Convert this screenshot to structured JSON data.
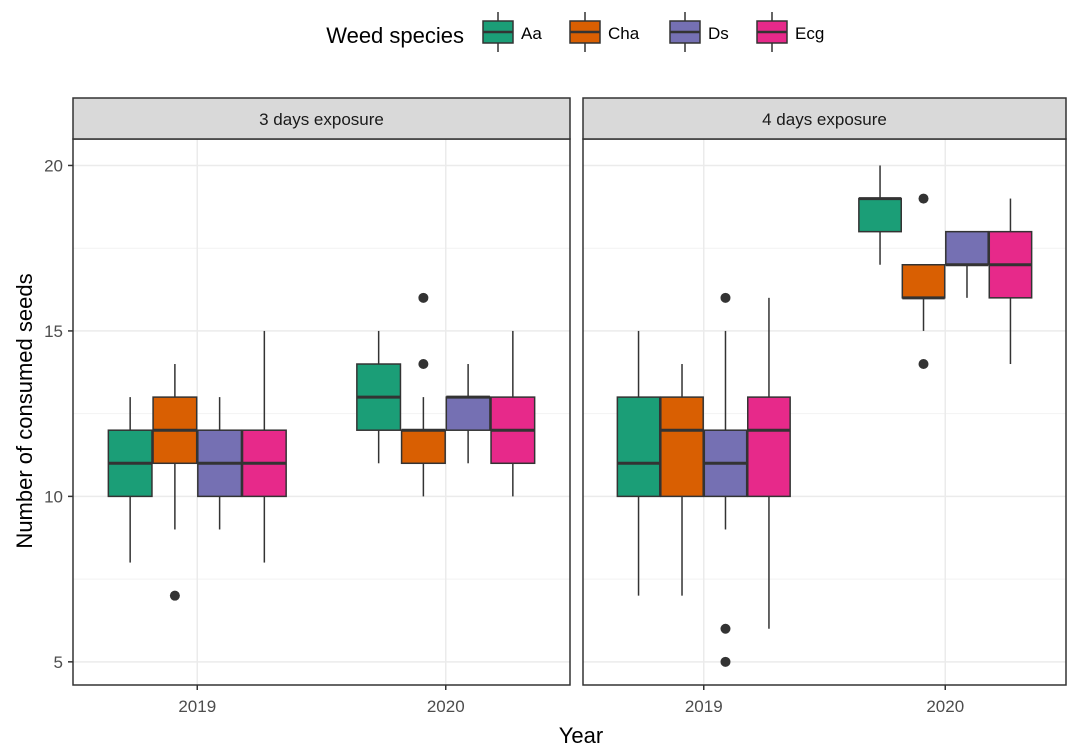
{
  "chart_data": {
    "type": "box",
    "xlabel": "Year",
    "ylabel": "Number of consumed seeds",
    "ylim": [
      4.3,
      20.8
    ],
    "yticks": [
      5,
      10,
      15,
      20
    ],
    "grid": true,
    "legend": {
      "title": "Weed species",
      "position": "top",
      "entries": [
        {
          "key": "Aa",
          "label": "Aa",
          "color": "#1b9e77"
        },
        {
          "key": "Cha",
          "label": "Cha",
          "color": "#d95f02"
        },
        {
          "key": "Ds",
          "label": "Ds",
          "color": "#7570b3"
        },
        {
          "key": "Ecg",
          "label": "Ecg",
          "color": "#e7298a"
        }
      ]
    },
    "categories": [
      "2019",
      "2020"
    ],
    "panels": [
      {
        "title": "3 days exposure",
        "boxes": [
          {
            "year": "2019",
            "species": "Aa",
            "min": 8,
            "q1": 10,
            "median": 11,
            "q3": 12,
            "max": 13,
            "outliers": []
          },
          {
            "year": "2019",
            "species": "Cha",
            "min": 9,
            "q1": 11,
            "median": 12,
            "q3": 13,
            "max": 14,
            "outliers": [
              7
            ]
          },
          {
            "year": "2019",
            "species": "Ds",
            "min": 9,
            "q1": 10,
            "median": 11,
            "q3": 12,
            "max": 13,
            "outliers": []
          },
          {
            "year": "2019",
            "species": "Ecg",
            "min": 8,
            "q1": 10,
            "median": 11,
            "q3": 12,
            "max": 15,
            "outliers": []
          },
          {
            "year": "2020",
            "species": "Aa",
            "min": 11,
            "q1": 12,
            "median": 13,
            "q3": 14,
            "max": 15,
            "outliers": []
          },
          {
            "year": "2020",
            "species": "Cha",
            "min": 10,
            "q1": 11,
            "median": 12,
            "q3": 12,
            "max": 13,
            "outliers": [
              14,
              16
            ]
          },
          {
            "year": "2020",
            "species": "Ds",
            "min": 11,
            "q1": 12,
            "median": 13,
            "q3": 13,
            "max": 14,
            "outliers": []
          },
          {
            "year": "2020",
            "species": "Ecg",
            "min": 10,
            "q1": 11,
            "median": 12,
            "q3": 13,
            "max": 15,
            "outliers": []
          }
        ]
      },
      {
        "title": "4 days exposure",
        "boxes": [
          {
            "year": "2019",
            "species": "Aa",
            "min": 7,
            "q1": 10,
            "median": 11,
            "q3": 13,
            "max": 15,
            "outliers": []
          },
          {
            "year": "2019",
            "species": "Cha",
            "min": 7,
            "q1": 10,
            "median": 12,
            "q3": 13,
            "max": 14,
            "outliers": []
          },
          {
            "year": "2019",
            "species": "Ds",
            "min": 9,
            "q1": 10,
            "median": 11,
            "q3": 12,
            "max": 15,
            "outliers": [
              5,
              6,
              16
            ]
          },
          {
            "year": "2019",
            "species": "Ecg",
            "min": 6,
            "q1": 10,
            "median": 12,
            "q3": 13,
            "max": 16,
            "outliers": []
          },
          {
            "year": "2020",
            "species": "Aa",
            "min": 17,
            "q1": 18,
            "median": 19,
            "q3": 19,
            "max": 20,
            "outliers": []
          },
          {
            "year": "2020",
            "species": "Cha",
            "min": 15,
            "q1": 16,
            "median": 16,
            "q3": 17,
            "max": 17,
            "outliers": [
              14,
              19
            ]
          },
          {
            "year": "2020",
            "species": "Ds",
            "min": 16,
            "q1": 17,
            "median": 17,
            "q3": 18,
            "max": 18,
            "outliers": []
          },
          {
            "year": "2020",
            "species": "Ecg",
            "min": 14,
            "q1": 16,
            "median": 17,
            "q3": 18,
            "max": 19,
            "outliers": []
          }
        ]
      }
    ]
  }
}
